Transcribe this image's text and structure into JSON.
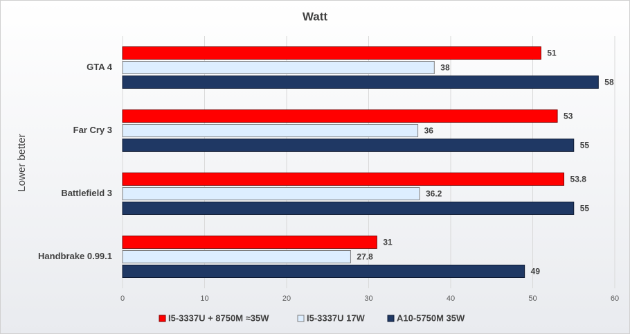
{
  "chart_data": {
    "type": "hbar",
    "title": "Watt",
    "y_label": "Lower better",
    "categories": [
      "GTA 4",
      "Far Cry 3",
      "Battlefield 3",
      "Handbrake 0.99.1"
    ],
    "series": [
      {
        "name": "I5-3337U + 8750M ≈35W",
        "color": "#ff0000",
        "values": [
          51,
          53,
          53.8,
          31
        ]
      },
      {
        "name": "I5-3337U 17W",
        "color": "#ddeeff",
        "values": [
          38,
          36,
          36.2,
          27.8
        ]
      },
      {
        "name": "A10-5750M 35W",
        "color": "#1f3864",
        "values": [
          58,
          55,
          55,
          49
        ]
      }
    ],
    "xlim": [
      0,
      60
    ],
    "xticks": [
      0,
      10,
      20,
      30,
      40,
      50,
      60
    ],
    "grid": true
  }
}
